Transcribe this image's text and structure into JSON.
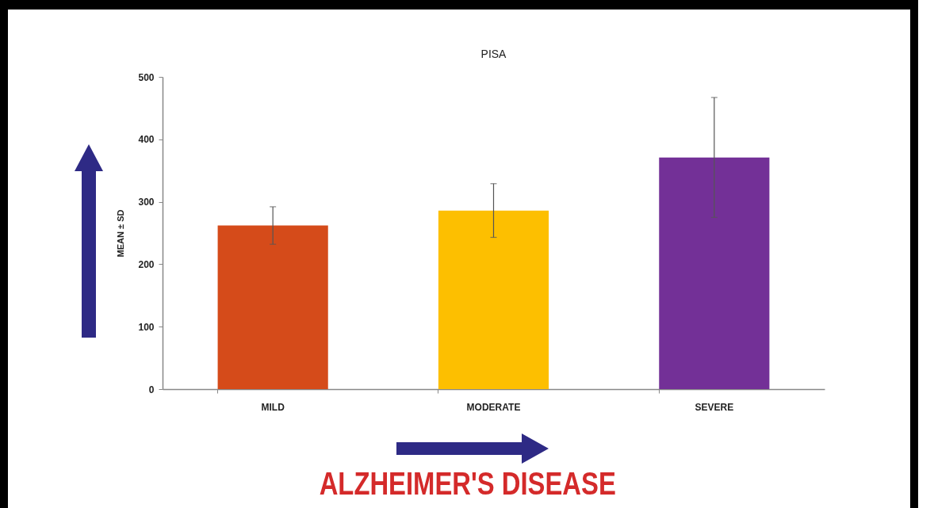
{
  "chart_data": {
    "type": "bar",
    "title": "PISA",
    "ylabel": "MEAN ± SD",
    "categories": [
      "MILD",
      "MODERATE",
      "SEVERE"
    ],
    "values": [
      262,
      286,
      371
    ],
    "errors": [
      30,
      43,
      96
    ],
    "colors": [
      "#d54b1a",
      "#fdbf00",
      "#733097"
    ],
    "ylim": [
      0,
      500
    ],
    "yticks": [
      0,
      100,
      200,
      300,
      400,
      500
    ],
    "annotations": [
      "ALZHEIMER'S DISEASE"
    ]
  }
}
